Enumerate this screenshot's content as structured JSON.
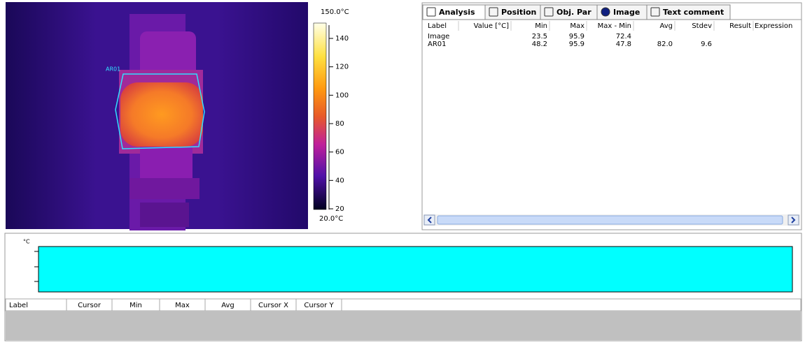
{
  "image_view": {
    "roi_label": "AR01",
    "scale_max": "150.0°C",
    "scale_min": "20.0°C",
    "scale_ticks": [
      "140",
      "120",
      "100",
      "80",
      "60",
      "40",
      "20"
    ]
  },
  "tabs": [
    "Analysis",
    "Position",
    "Obj. Par",
    "Image",
    "Text comment"
  ],
  "analysis_table": {
    "columns": [
      "Label",
      "Value [°C]",
      "Min",
      "Max",
      "Max - Min",
      "Avg",
      "Stdev",
      "Result",
      "Expression"
    ],
    "rows": [
      [
        "Image",
        null,
        "23.5",
        "95.9",
        "72.4",
        null,
        null,
        null,
        null
      ],
      [
        "AR01",
        null,
        "48.2",
        "95.9",
        "47.8",
        "82.0",
        "9.6",
        null,
        null
      ]
    ]
  },
  "profile": {
    "unit": "°C",
    "columns": [
      "Label",
      "Cursor",
      "Min",
      "Max",
      "Avg",
      "Cursor X",
      "Cursor Y"
    ]
  }
}
